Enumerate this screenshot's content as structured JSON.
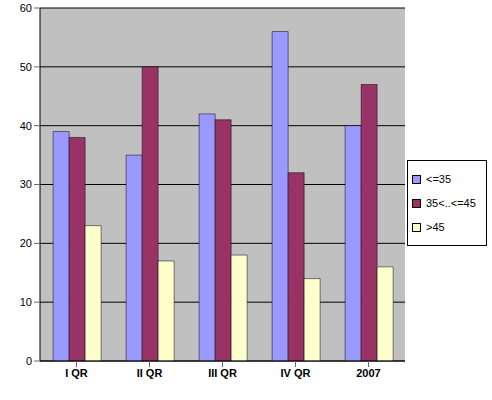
{
  "chart_data": {
    "type": "bar",
    "categories": [
      "I QR",
      "II QR",
      "III QR",
      "IV QR",
      "2007"
    ],
    "series": [
      {
        "name": "<=35",
        "color": "#9999FF",
        "values": [
          39,
          35,
          42,
          56,
          40
        ]
      },
      {
        "name": "35<..<=45",
        "color": "#993366",
        "values": [
          38,
          50,
          41,
          32,
          47
        ]
      },
      {
        "name": ">45",
        "color": "#FFFFCC",
        "values": [
          23,
          17,
          18,
          14,
          16
        ]
      }
    ],
    "ylim": [
      0,
      60
    ],
    "yticks": [
      0,
      10,
      20,
      30,
      40,
      50,
      60
    ],
    "grid": true,
    "legend": "right"
  }
}
